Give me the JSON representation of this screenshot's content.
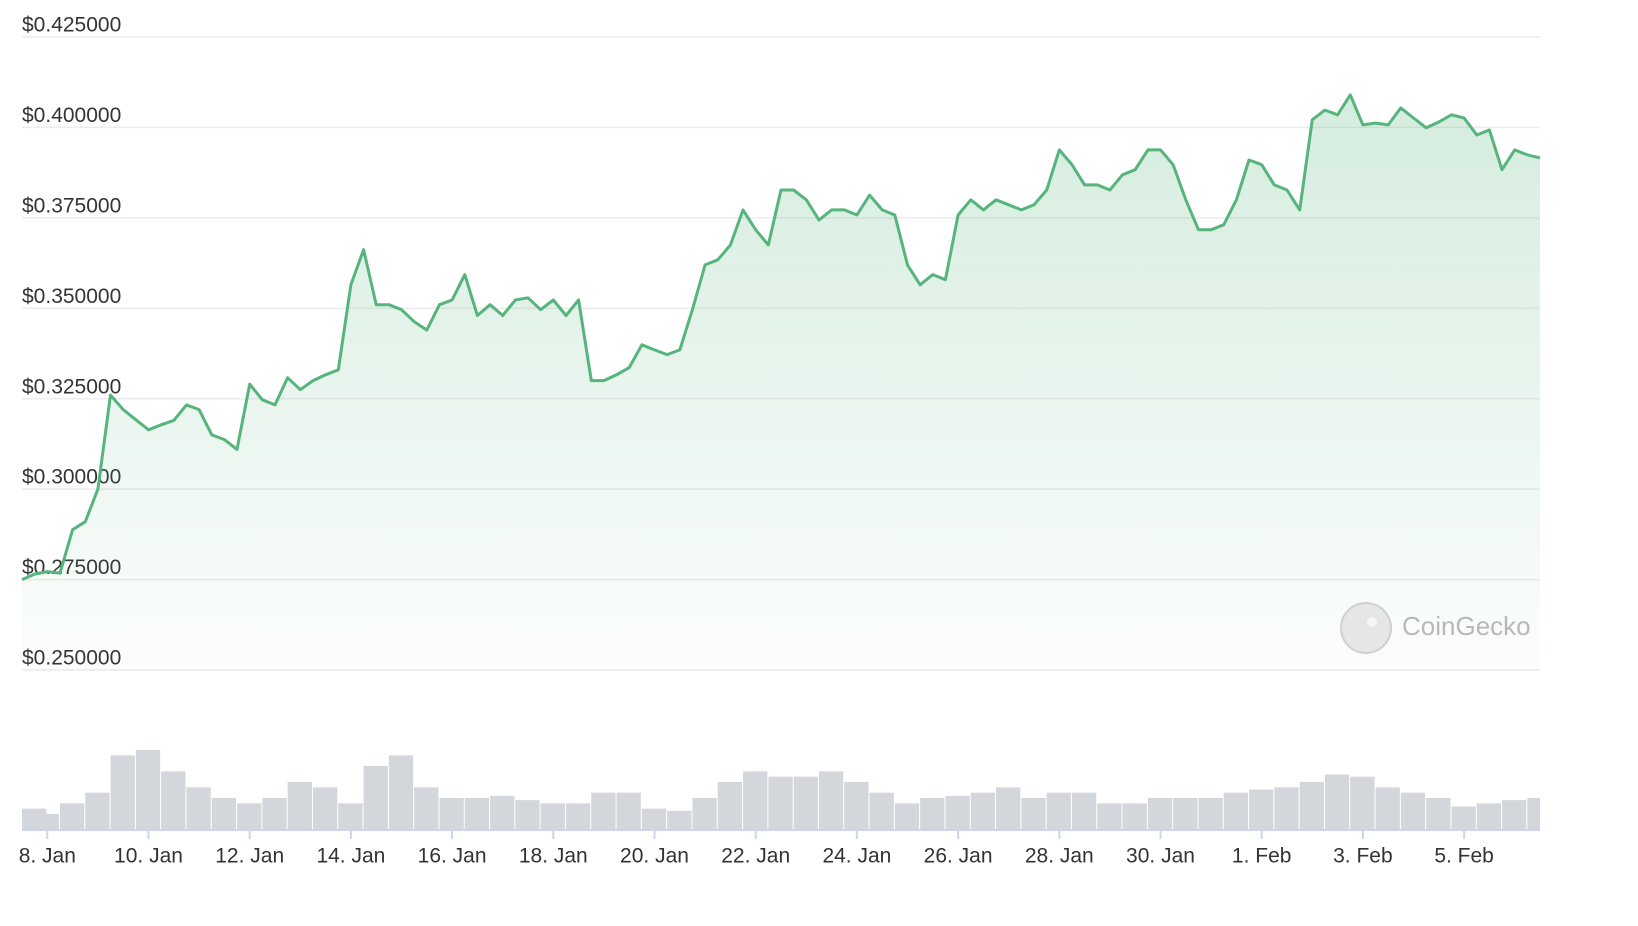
{
  "chart_data": {
    "type": "line",
    "color": "#56b47c",
    "grid": true,
    "watermark": "CoinGecko",
    "xlim": [
      -0.5,
      29.5
    ],
    "xticks": [
      {
        "value": 0,
        "label": "8. Jan"
      },
      {
        "value": 2,
        "label": "10. Jan"
      },
      {
        "value": 4,
        "label": "12. Jan"
      },
      {
        "value": 6,
        "label": "14. Jan"
      },
      {
        "value": 8,
        "label": "16. Jan"
      },
      {
        "value": 10,
        "label": "18. Jan"
      },
      {
        "value": 12,
        "label": "20. Jan"
      },
      {
        "value": 14,
        "label": "22. Jan"
      },
      {
        "value": 16,
        "label": "24. Jan"
      },
      {
        "value": 18,
        "label": "26. Jan"
      },
      {
        "value": 20,
        "label": "28. Jan"
      },
      {
        "value": 22,
        "label": "30. Jan"
      },
      {
        "value": 24,
        "label": "1. Feb"
      },
      {
        "value": 26,
        "label": "3. Feb"
      },
      {
        "value": 28,
        "label": "5. Feb"
      }
    ],
    "ylim": [
      0.25,
      0.425
    ],
    "yticks": [
      {
        "value": 0.425,
        "label": "$0.425000"
      },
      {
        "value": 0.4,
        "label": "$0.400000"
      },
      {
        "value": 0.375,
        "label": "$0.375000"
      },
      {
        "value": 0.35,
        "label": "$0.350000"
      },
      {
        "value": 0.325,
        "label": "$0.325000"
      },
      {
        "value": 0.3,
        "label": "$0.300000"
      },
      {
        "value": 0.275,
        "label": "$0.275000"
      },
      {
        "value": 0.25,
        "label": "$0.250000"
      }
    ],
    "x": [
      -0.5,
      -0.25,
      0,
      0.25,
      0.5,
      0.75,
      1,
      1.25,
      1.5,
      1.75,
      2,
      2.25,
      2.5,
      2.75,
      3,
      3.25,
      3.5,
      3.75,
      4,
      4.25,
      4.5,
      4.75,
      5,
      5.25,
      5.5,
      5.75,
      6,
      6.25,
      6.5,
      6.75,
      7,
      7.25,
      7.5,
      7.75,
      8,
      8.25,
      8.5,
      8.75,
      9,
      9.25,
      9.5,
      9.75,
      10,
      10.25,
      10.5,
      10.75,
      11,
      11.25,
      11.5,
      11.75,
      12,
      12.25,
      12.5,
      12.75,
      13,
      13.25,
      13.5,
      13.75,
      14,
      14.25,
      14.5,
      14.75,
      15,
      15.25,
      15.5,
      15.75,
      16,
      16.25,
      16.5,
      16.75,
      17,
      17.25,
      17.5,
      17.75,
      18,
      18.25,
      18.5,
      18.75,
      19,
      19.25,
      19.5,
      19.75,
      20,
      20.25,
      20.5,
      20.75,
      21,
      21.25,
      21.5,
      21.75,
      22,
      22.25,
      22.5,
      22.75,
      23,
      23.25,
      23.5,
      23.75,
      24,
      24.25,
      24.5,
      24.75,
      25,
      25.25,
      25.5,
      25.75,
      26,
      26.25,
      26.5,
      26.75,
      27,
      27.25,
      27.5,
      27.75,
      28,
      28.25,
      28.5,
      28.75,
      29,
      29.25,
      29.5
    ],
    "values": [
      0.275,
      0.2765,
      0.2772,
      0.2768,
      0.2888,
      0.291,
      0.3,
      0.326,
      0.322,
      0.3192,
      0.3164,
      0.3178,
      0.319,
      0.3233,
      0.322,
      0.315,
      0.3137,
      0.311,
      0.329,
      0.3247,
      0.3233,
      0.3308,
      0.3275,
      0.33,
      0.3316,
      0.333,
      0.3565,
      0.3662,
      0.351,
      0.351,
      0.3496,
      0.3463,
      0.344,
      0.351,
      0.3523,
      0.3593,
      0.348,
      0.351,
      0.348,
      0.3523,
      0.3529,
      0.3496,
      0.3523,
      0.348,
      0.3523,
      0.33,
      0.33,
      0.3316,
      0.3336,
      0.3399,
      0.3385,
      0.3372,
      0.3385,
      0.3496,
      0.362,
      0.3634,
      0.3675,
      0.3772,
      0.3717,
      0.3675,
      0.3827,
      0.3827,
      0.38,
      0.3744,
      0.3772,
      0.3772,
      0.3758,
      0.3813,
      0.3772,
      0.3758,
      0.362,
      0.3565,
      0.3593,
      0.3579,
      0.3758,
      0.38,
      0.3772,
      0.38,
      0.3786,
      0.3772,
      0.3786,
      0.3827,
      0.3938,
      0.3897,
      0.3841,
      0.3841,
      0.3827,
      0.3869,
      0.3883,
      0.3938,
      0.3938,
      0.3897,
      0.38,
      0.3717,
      0.3717,
      0.3731,
      0.38,
      0.391,
      0.3897,
      0.3841,
      0.3827,
      0.3772,
      0.4021,
      0.4048,
      0.4035,
      0.409,
      0.4007,
      0.4012,
      0.4007,
      0.4054,
      0.4026,
      0.3999,
      0.4015,
      0.4035,
      0.4026,
      0.3979,
      0.3993,
      0.3883,
      0.3938,
      0.3924,
      0.3916
    ],
    "volume": {
      "color": "#d3d6db",
      "x": [
        -0.5,
        0,
        0.5,
        1,
        1.5,
        2,
        2.5,
        3,
        3.5,
        4,
        4.5,
        5,
        5.5,
        6,
        6.5,
        7,
        7.5,
        8,
        8.5,
        9,
        9.5,
        10,
        10.5,
        11,
        11.5,
        12,
        12.5,
        13,
        13.5,
        14,
        14.5,
        15,
        15.5,
        16,
        16.5,
        17,
        17.5,
        18,
        18.5,
        19,
        19.5,
        20,
        20.5,
        21,
        21.5,
        22,
        22.5,
        23,
        23.5,
        24,
        24.5,
        25,
        25.5,
        26,
        26.5,
        27,
        27.5,
        28,
        28.5,
        29,
        29.5
      ],
      "values": [
        20,
        15,
        25,
        35,
        70,
        75,
        55,
        40,
        30,
        25,
        30,
        45,
        40,
        25,
        60,
        70,
        40,
        30,
        30,
        32,
        28,
        25,
        25,
        35,
        35,
        20,
        18,
        30,
        45,
        55,
        50,
        50,
        55,
        45,
        35,
        25,
        30,
        32,
        35,
        40,
        30,
        35,
        35,
        25,
        25,
        30,
        30,
        30,
        35,
        38,
        40,
        45,
        52,
        50,
        40,
        35,
        30,
        22,
        25,
        28,
        30
      ]
    }
  }
}
